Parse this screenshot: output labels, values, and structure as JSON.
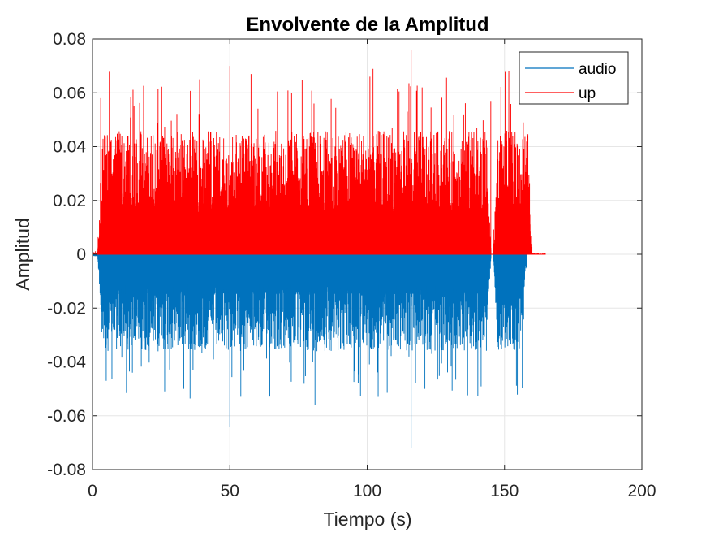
{
  "chart_data": {
    "type": "line",
    "title": "Envolvente de la Amplitud",
    "xlabel": "Tiempo (s)",
    "ylabel": "Amplitud",
    "xlim": [
      0,
      200
    ],
    "ylim": [
      -0.08,
      0.08
    ],
    "xticks": [
      0,
      50,
      100,
      150,
      200
    ],
    "xtick_labels": [
      "0",
      "50",
      "100",
      "150",
      "200"
    ],
    "yticks": [
      0.08,
      0.06,
      0.04,
      0.02,
      0,
      -0.02,
      -0.04,
      -0.06,
      -0.08
    ],
    "ytick_labels": [
      "0.08",
      "0.06",
      "0.04",
      "0.02",
      "0",
      "-0.02",
      "-0.04",
      "-0.06",
      "-0.08"
    ],
    "grid": true,
    "legend_position": "top-right",
    "colors": {
      "audio": "#0072BD",
      "up": "#FF0000",
      "grid": "#E6E6E6",
      "axis": "#262626"
    },
    "series": [
      {
        "name": "audio",
        "dense_signal": true,
        "active_ranges": [
          [
            2,
            145
          ],
          [
            146,
            158
          ]
        ],
        "peaks": [
          {
            "x": 50,
            "y": -0.064
          },
          {
            "x": 81,
            "y": -0.056
          },
          {
            "x": 116,
            "y": -0.072
          },
          {
            "x": 5,
            "y": -0.047
          },
          {
            "x": 104,
            "y": -0.053
          },
          {
            "x": 121,
            "y": -0.05
          }
        ]
      },
      {
        "name": "up",
        "dense_signal": true,
        "active_ranges": [
          [
            2,
            145
          ],
          [
            146,
            160
          ]
        ],
        "tail_end": 165,
        "peaks": [
          {
            "x": 3,
            "y": 0.058
          },
          {
            "x": 50,
            "y": 0.07
          },
          {
            "x": 116,
            "y": 0.076
          },
          {
            "x": 101,
            "y": 0.066
          },
          {
            "x": 120,
            "y": 0.062
          },
          {
            "x": 145,
            "y": 0.057
          },
          {
            "x": 153,
            "y": 0.044
          }
        ]
      }
    ]
  }
}
